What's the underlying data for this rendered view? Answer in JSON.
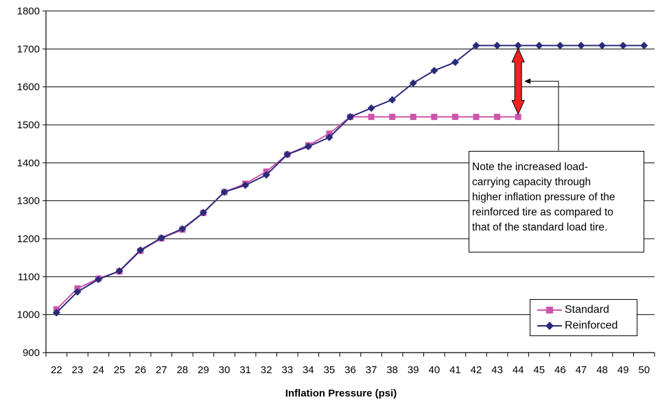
{
  "chart_data": {
    "type": "line",
    "xlabel": "Inflation Pressure (psi)",
    "ylabel": "",
    "ylim": [
      900,
      1800
    ],
    "yticks": [
      900,
      1000,
      1100,
      1200,
      1300,
      1400,
      1500,
      1600,
      1700,
      1800
    ],
    "x": [
      22,
      23,
      24,
      25,
      26,
      27,
      28,
      29,
      30,
      31,
      32,
      33,
      34,
      35,
      36,
      37,
      38,
      39,
      40,
      41,
      42,
      43,
      44,
      45,
      46,
      47,
      48,
      49,
      50
    ],
    "grid": "horizontal",
    "legend_position": "bottom-right",
    "series": [
      {
        "name": "Standard",
        "color": "#cc55aa",
        "marker": "square",
        "x": [
          22,
          23,
          24,
          25,
          26,
          27,
          28,
          29,
          30,
          31,
          32,
          33,
          34,
          35,
          36,
          37,
          38,
          39,
          40,
          41,
          42,
          43,
          44
        ],
        "values": [
          1014,
          1069,
          1095,
          1114,
          1168,
          1201,
          1224,
          1268,
          1323,
          1345,
          1377,
          1422,
          1446,
          1477,
          1521,
          1521,
          1521,
          1521,
          1521,
          1521,
          1521,
          1521,
          1521
        ]
      },
      {
        "name": "Reinforced",
        "color": "#2a2a7a",
        "marker": "diamond",
        "x": [
          22,
          23,
          24,
          25,
          26,
          27,
          28,
          29,
          30,
          31,
          32,
          33,
          34,
          35,
          36,
          37,
          38,
          39,
          40,
          41,
          42,
          43,
          44,
          45,
          46,
          47,
          48,
          49,
          50
        ],
        "values": [
          1005,
          1060,
          1093,
          1115,
          1170,
          1202,
          1226,
          1269,
          1323,
          1341,
          1368,
          1422,
          1443,
          1467,
          1521,
          1544,
          1566,
          1610,
          1643,
          1665,
          1709,
          1709,
          1709,
          1709,
          1709,
          1709,
          1709,
          1709,
          1709
        ]
      }
    ],
    "annotation": {
      "text": "Note the increased load-carrying capacity through higher inflation pressure of the reinforced tire as compared to that of the standard load tire.",
      "lines": [
        "Note the increased load-",
        "carrying capacity through",
        "higher inflation pressure of the",
        "reinforced tire as compared to",
        "that of the standard load tire."
      ],
      "arrow_at_x": 44,
      "arrow_from": 1521,
      "arrow_to": 1709,
      "arrow_color": "#ee2222"
    }
  }
}
